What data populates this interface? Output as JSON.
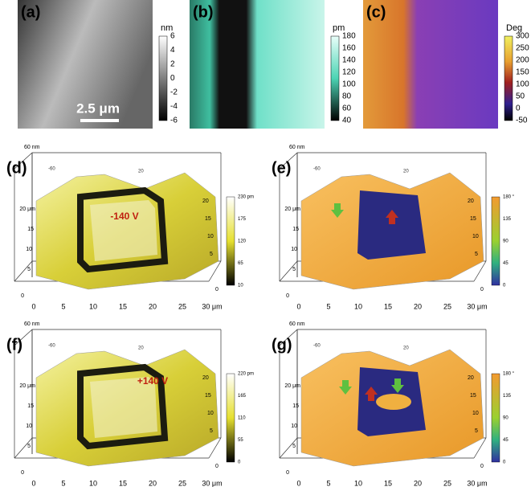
{
  "top_panels": [
    {
      "label": "(a)",
      "unit": "nm",
      "ticks": [
        "6",
        "4",
        "2",
        "0",
        "-2",
        "-4",
        "-6"
      ],
      "scale_bar": "2.5 μm"
    },
    {
      "label": "(b)",
      "unit": "pm",
      "ticks": [
        "180",
        "160",
        "140",
        "120",
        "100",
        "80",
        "60",
        "40"
      ]
    },
    {
      "label": "(c)",
      "unit": "Deg",
      "ticks": [
        "300",
        "250",
        "200",
        "150",
        "100",
        "50",
        "0",
        "-50"
      ]
    }
  ],
  "surface_panels": [
    {
      "label": "(d)",
      "z_label": "60 nm",
      "colorbar_ticks": [
        "230 pm",
        "175",
        "120",
        "65",
        "10"
      ],
      "annotation": "-140 V",
      "x_ticks": [
        "0",
        "5",
        "10",
        "15",
        "20",
        "25",
        "30 μm"
      ],
      "y_ticks_left": [
        "20 μm",
        "15",
        "10",
        "5",
        "0"
      ],
      "y_ticks_right": [
        "20",
        "15",
        "10",
        "5",
        "0"
      ],
      "back_ticks": [
        "-60",
        "20"
      ]
    },
    {
      "label": "(e)",
      "z_label": "60 nm",
      "colorbar_ticks": [
        "180 °",
        "135",
        "90",
        "45",
        "0"
      ],
      "x_ticks": [
        "0",
        "5",
        "10",
        "15",
        "20",
        "25",
        "30 μm"
      ],
      "y_ticks_left": [
        "20 μm",
        "15",
        "10",
        "5",
        "0"
      ],
      "y_ticks_right": [
        "20",
        "15",
        "10",
        "5",
        "0"
      ],
      "back_ticks": [
        "-60",
        "20"
      ]
    },
    {
      "label": "(f)",
      "z_label": "60 nm",
      "colorbar_ticks": [
        "220 pm",
        "165",
        "110",
        "55",
        "0"
      ],
      "annotation": "+140 V",
      "x_ticks": [
        "0",
        "5",
        "10",
        "15",
        "20",
        "25",
        "30 μm"
      ],
      "y_ticks_left": [
        "20 μm",
        "15",
        "10",
        "5",
        "0"
      ],
      "y_ticks_right": [
        "20",
        "15",
        "10",
        "5",
        "0"
      ],
      "back_ticks": [
        "-60",
        "20"
      ]
    },
    {
      "label": "(g)",
      "z_label": "60 nm",
      "colorbar_ticks": [
        "180 °",
        "135",
        "90",
        "45",
        "0"
      ],
      "x_ticks": [
        "0",
        "5",
        "10",
        "15",
        "20",
        "25",
        "30 μm"
      ],
      "y_ticks_left": [
        "20 μm",
        "15",
        "10",
        "5",
        "0"
      ],
      "y_ticks_right": [
        "20",
        "15",
        "10",
        "5",
        "0"
      ],
      "back_ticks": [
        "-60",
        "20"
      ]
    }
  ]
}
